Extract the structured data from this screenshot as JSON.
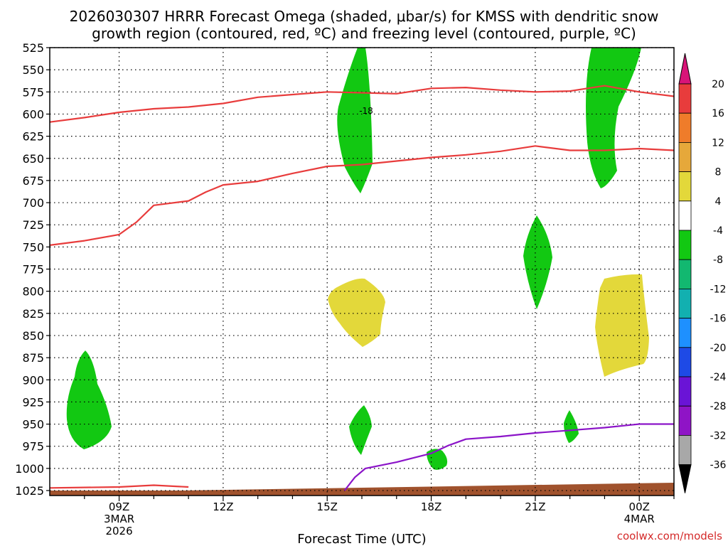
{
  "chart_data": {
    "type": "heatmap",
    "title_line1": "2026030307 HRRR Forecast Omega (shaded, μbar/s) for KMSS with dendritic snow",
    "title_line2": "growth region (contoured, red, ºC) and freezing level (contoured, purple, ºC)",
    "xlabel": "Forecast Time (UTC)",
    "credit": "coolwx.com/models",
    "x_range_hours": [
      7,
      25
    ],
    "y_range_hpa": [
      525,
      1025
    ],
    "y_ticks": [
      "525",
      "550",
      "575",
      "600",
      "625",
      "650",
      "675",
      "700",
      "725",
      "750",
      "775",
      "800",
      "825",
      "850",
      "875",
      "900",
      "925",
      "950",
      "975",
      "1000",
      "1025"
    ],
    "x_ticks": [
      {
        "hour": 9,
        "label": "09Z",
        "sub1": "3MAR",
        "sub2": "2026"
      },
      {
        "hour": 12,
        "label": "12Z",
        "sub1": "",
        "sub2": ""
      },
      {
        "hour": 15,
        "label": "15Z",
        "sub1": "",
        "sub2": ""
      },
      {
        "hour": 18,
        "label": "18Z",
        "sub1": "",
        "sub2": ""
      },
      {
        "hour": 21,
        "label": "21Z",
        "sub1": "",
        "sub2": ""
      },
      {
        "hour": 24,
        "label": "00Z",
        "sub1": "4MAR",
        "sub2": ""
      }
    ],
    "red_contour_label": "-18",
    "series": [
      {
        "name": "-12C contour (upper)",
        "color": "#e83c3c",
        "points": [
          [
            7,
            609
          ],
          [
            8,
            604
          ],
          [
            9,
            598
          ],
          [
            10,
            594
          ],
          [
            11,
            592
          ],
          [
            12,
            588
          ],
          [
            13,
            581
          ],
          [
            14,
            578
          ],
          [
            15,
            575
          ],
          [
            16,
            576
          ],
          [
            17,
            577
          ],
          [
            18,
            571
          ],
          [
            19,
            570
          ],
          [
            20,
            573
          ],
          [
            21,
            575
          ],
          [
            22,
            574
          ],
          [
            23,
            568
          ],
          [
            24,
            575
          ],
          [
            25,
            580
          ]
        ]
      },
      {
        "name": "-18C contour (lower)",
        "color": "#e83c3c",
        "points": [
          [
            7,
            748
          ],
          [
            8,
            743
          ],
          [
            9,
            736
          ],
          [
            9.5,
            722
          ],
          [
            10,
            703
          ],
          [
            11,
            698
          ],
          [
            11.5,
            688
          ],
          [
            12,
            680
          ],
          [
            13,
            676
          ],
          [
            14,
            667
          ],
          [
            15,
            659
          ],
          [
            16,
            657
          ],
          [
            17,
            653
          ],
          [
            18,
            649
          ],
          [
            19,
            646
          ],
          [
            20,
            642
          ],
          [
            21,
            636
          ],
          [
            22,
            641
          ],
          [
            23,
            641
          ],
          [
            24,
            639
          ],
          [
            25,
            641
          ]
        ]
      },
      {
        "name": "surface -18C segment",
        "color": "#e83c3c",
        "points": [
          [
            7,
            1022
          ],
          [
            9,
            1021
          ],
          [
            10,
            1019
          ],
          [
            11,
            1021
          ]
        ]
      },
      {
        "name": "freezing level 0C",
        "color": "#8b14c8",
        "points": [
          [
            15.5,
            1025
          ],
          [
            15.8,
            1010
          ],
          [
            16.1,
            1000
          ],
          [
            17,
            993
          ],
          [
            18,
            983
          ],
          [
            18.5,
            974
          ],
          [
            19,
            967
          ],
          [
            20,
            964
          ],
          [
            21,
            960
          ],
          [
            22,
            957
          ],
          [
            23,
            954
          ],
          [
            24,
            950
          ],
          [
            25,
            950
          ]
        ]
      }
    ],
    "colorbar": {
      "labels": [
        "20",
        "16",
        "12",
        "8",
        "4",
        "-4",
        "-8",
        "-12",
        "-16",
        "-20",
        "-24",
        "-28",
        "-32",
        "-36"
      ],
      "colors": [
        "#e83c3c",
        "#ef7c2a",
        "#e6a83a",
        "#e3d83a",
        "#ffffff",
        "#12c812",
        "#12b870",
        "#12b0b0",
        "#1e90ff",
        "#1e4ae6",
        "#6a14d6",
        "#8f14c6",
        "#a8a8a8"
      ],
      "top_arrow": "#d81478",
      "bottom_arrow": "#000000"
    }
  }
}
